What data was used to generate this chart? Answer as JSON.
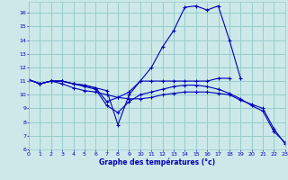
{
  "xlabel": "Graphe des températures (°c)",
  "bg_color": "#cce8e8",
  "grid_color": "#99cccc",
  "line_color": "#0000bb",
  "ylim": [
    6,
    16.8
  ],
  "xlim": [
    0,
    23
  ],
  "yticks": [
    6,
    7,
    8,
    9,
    10,
    11,
    12,
    13,
    14,
    15,
    16
  ],
  "xticks": [
    0,
    1,
    2,
    3,
    4,
    5,
    6,
    7,
    8,
    9,
    10,
    11,
    12,
    13,
    14,
    15,
    16,
    17,
    18,
    19,
    20,
    21,
    22,
    23
  ],
  "series": [
    [
      11.1,
      10.8,
      11.0,
      11.0,
      10.8,
      10.7,
      10.5,
      10.3,
      7.8,
      10.0,
      11.0,
      12.0,
      13.5,
      14.7,
      16.4,
      16.5,
      16.2,
      16.5,
      14.0,
      11.2,
      null,
      null,
      null,
      null
    ],
    [
      11.1,
      10.8,
      11.0,
      11.0,
      10.8,
      10.7,
      10.5,
      9.5,
      9.8,
      10.2,
      11.0,
      11.0,
      11.0,
      11.0,
      11.0,
      11.0,
      11.0,
      11.2,
      11.2,
      null,
      null,
      null,
      null,
      null
    ],
    [
      11.1,
      10.8,
      11.0,
      11.0,
      10.8,
      10.6,
      10.4,
      9.2,
      8.7,
      9.5,
      10.0,
      10.2,
      10.4,
      10.6,
      10.7,
      10.7,
      10.6,
      10.4,
      10.1,
      9.7,
      9.2,
      8.8,
      7.3,
      6.5
    ],
    [
      11.1,
      10.8,
      11.0,
      10.8,
      10.5,
      10.3,
      10.2,
      10.0,
      9.8,
      9.7,
      9.7,
      9.8,
      10.0,
      10.1,
      10.2,
      10.2,
      10.2,
      10.1,
      10.0,
      9.6,
      9.3,
      9.0,
      7.5,
      6.4
    ]
  ]
}
